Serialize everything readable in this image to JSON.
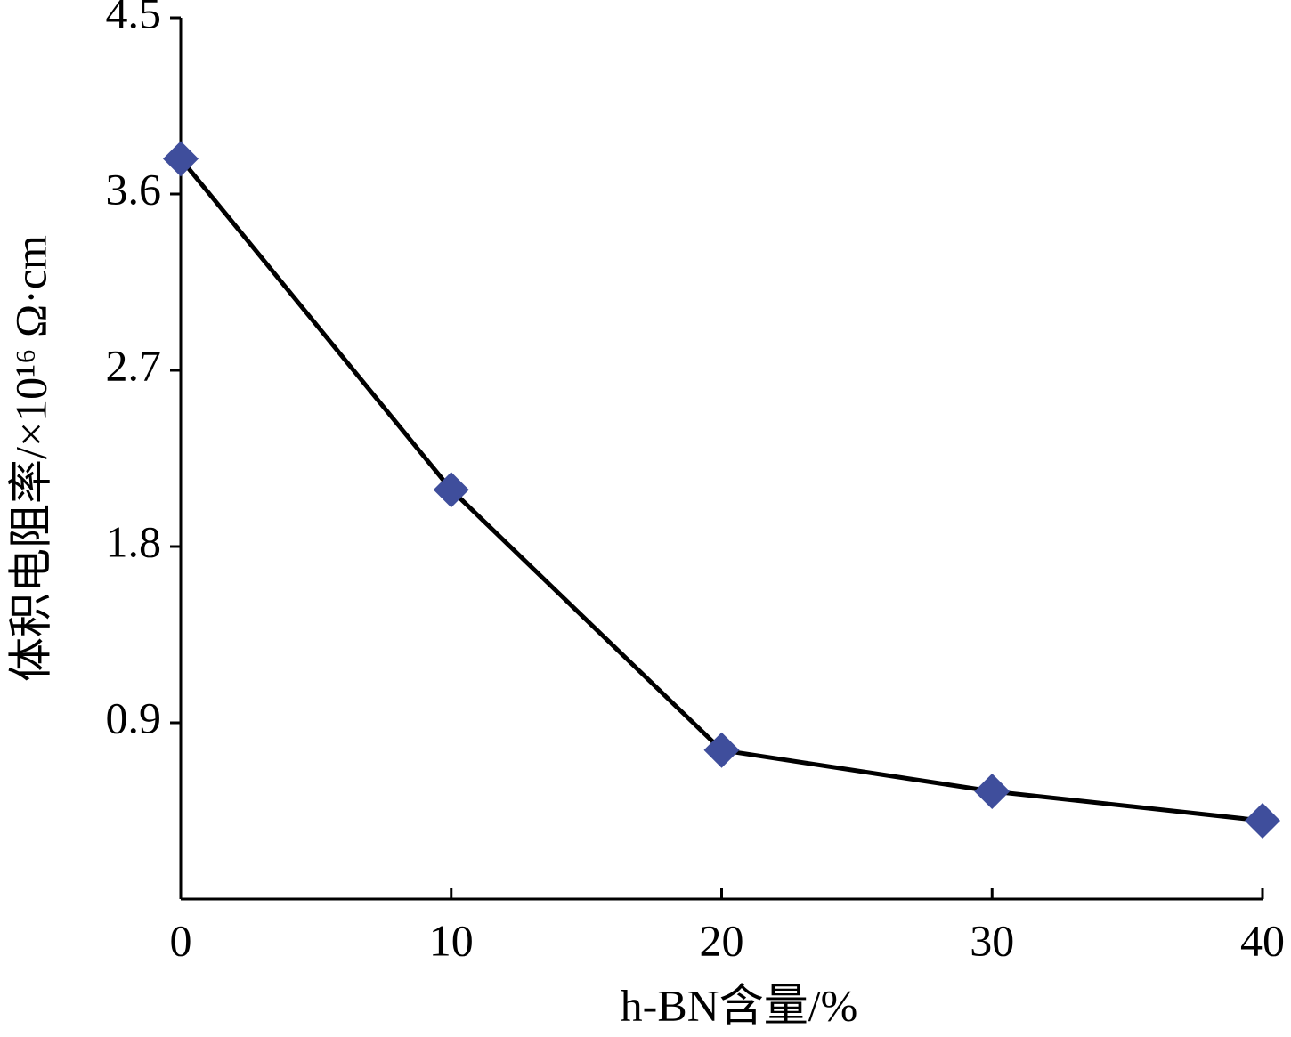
{
  "chart_data": {
    "type": "line",
    "x_label": "h-BN含量/%",
    "y_label": "体积电阻率/×10¹⁶ Ω·cm",
    "x": [
      0,
      10,
      20,
      30,
      40
    ],
    "series": [
      {
        "values": [
          3.78,
          2.09,
          0.76,
          0.55,
          0.4
        ],
        "color": "#3f4e9c",
        "line_color": "#000000"
      }
    ],
    "xlim": [
      0,
      40
    ],
    "xticks": [
      0,
      10,
      20,
      30,
      40
    ],
    "ylim": [
      0,
      4.5
    ],
    "yticks": [
      0.9,
      1.8,
      2.7,
      3.6,
      4.5
    ],
    "grid": false
  }
}
